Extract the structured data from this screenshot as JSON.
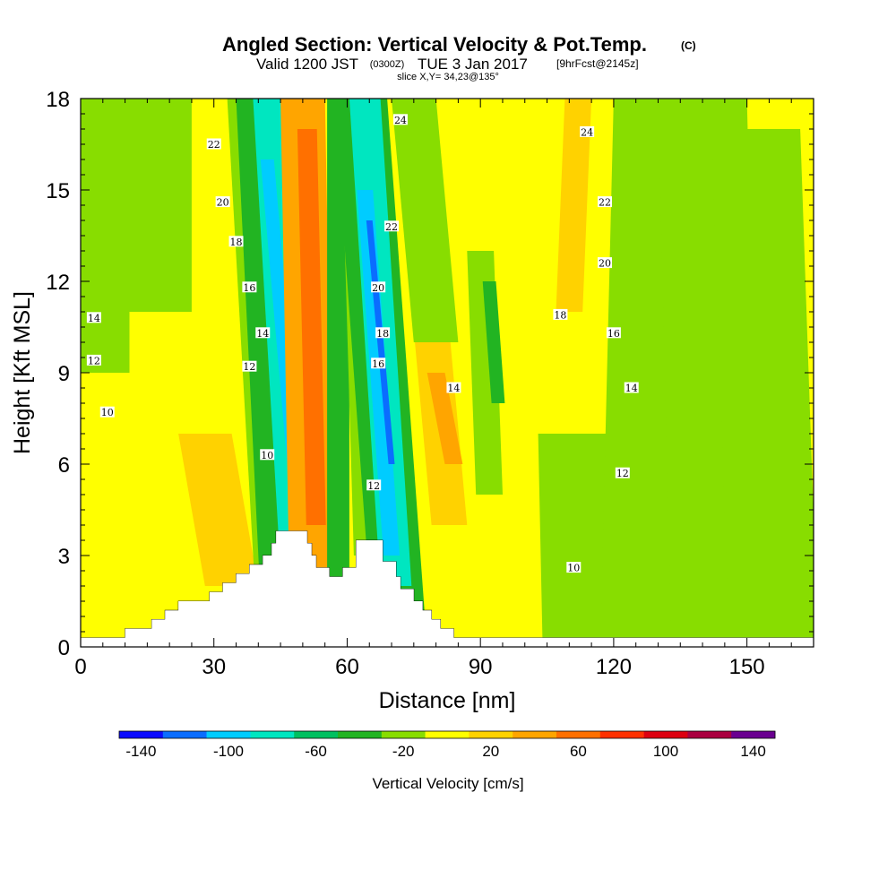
{
  "title": {
    "main": "Angled Section: Vertical Velocity & Pot.Temp.",
    "unit": "(C)",
    "valid_prefix": "Valid 1200 JST",
    "valid_utc": "(0300Z)",
    "valid_date": "TUE 3 Jan 2017",
    "forecast": "[9hrFcst@2145z]",
    "slice": "slice X,Y= 34,23@135°"
  },
  "chart_data": {
    "type": "heatmap",
    "xlabel": "Distance [nm]",
    "ylabel": "Height [Kft MSL]",
    "xlim": [
      0,
      165
    ],
    "ylim": [
      0,
      18
    ],
    "x_ticks": [
      "0",
      "30",
      "60",
      "90",
      "120",
      "150"
    ],
    "y_ticks": [
      "0",
      "3",
      "6",
      "9",
      "12",
      "15",
      "18"
    ],
    "colorbar": {
      "label": "Vertical Velocity [cm/s]",
      "tick_labels": [
        "-140",
        "-100",
        "-60",
        "-20",
        "20",
        "60",
        "100",
        "140"
      ],
      "colors": [
        "#0a0aff",
        "#0a6dff",
        "#00ccff",
        "#00e6c0",
        "#00c060",
        "#22b422",
        "#88dd00",
        "#ffff00",
        "#ffd200",
        "#ffa500",
        "#ff7000",
        "#ff3000",
        "#dd0010",
        "#aa0040",
        "#6a0090"
      ]
    },
    "terrain_kft": [
      [
        0,
        0.3
      ],
      [
        10,
        0.3
      ],
      [
        10,
        0.6
      ],
      [
        16,
        0.6
      ],
      [
        16,
        0.9
      ],
      [
        19,
        0.9
      ],
      [
        19,
        1.2
      ],
      [
        22,
        1.2
      ],
      [
        22,
        1.5
      ],
      [
        29,
        1.5
      ],
      [
        29,
        1.8
      ],
      [
        32,
        1.8
      ],
      [
        32,
        2.1
      ],
      [
        35,
        2.1
      ],
      [
        35,
        2.4
      ],
      [
        38,
        2.4
      ],
      [
        38,
        2.7
      ],
      [
        41,
        2.7
      ],
      [
        41,
        3.0
      ],
      [
        43,
        3.0
      ],
      [
        43,
        3.4
      ],
      [
        44,
        3.4
      ],
      [
        44,
        3.8
      ],
      [
        51,
        3.8
      ],
      [
        51,
        3.4
      ],
      [
        52,
        3.4
      ],
      [
        52,
        3.0
      ],
      [
        53,
        3.0
      ],
      [
        53,
        2.6
      ],
      [
        56,
        2.6
      ],
      [
        56,
        2.3
      ],
      [
        59,
        2.3
      ],
      [
        59,
        2.6
      ],
      [
        62,
        2.6
      ],
      [
        62,
        3.5
      ],
      [
        68,
        3.5
      ],
      [
        68,
        2.8
      ],
      [
        71,
        2.8
      ],
      [
        71,
        2.3
      ],
      [
        72,
        2.3
      ],
      [
        72,
        1.9
      ],
      [
        75,
        1.9
      ],
      [
        75,
        1.5
      ],
      [
        77,
        1.5
      ],
      [
        77,
        1.2
      ],
      [
        79,
        1.2
      ],
      [
        79,
        0.9
      ],
      [
        81,
        0.9
      ],
      [
        81,
        0.6
      ],
      [
        84,
        0.6
      ],
      [
        84,
        0.3
      ],
      [
        165,
        0.3
      ]
    ],
    "theta_contours": [
      {
        "level": "10",
        "labels": [
          [
            6,
            7.7
          ],
          [
            42,
            6.3
          ],
          [
            111,
            2.6
          ]
        ]
      },
      {
        "level": "12",
        "labels": [
          [
            3,
            9.4
          ],
          [
            38,
            9.2
          ],
          [
            66,
            5.3
          ],
          [
            122,
            5.7
          ]
        ]
      },
      {
        "level": "14",
        "labels": [
          [
            3,
            10.8
          ],
          [
            41,
            10.3
          ],
          [
            84,
            8.5
          ],
          [
            124,
            8.5
          ]
        ]
      },
      {
        "level": "16",
        "labels": [
          [
            38,
            11.8
          ],
          [
            67,
            9.3
          ],
          [
            120,
            10.3
          ]
        ]
      },
      {
        "level": "18",
        "labels": [
          [
            35,
            13.3
          ],
          [
            68,
            10.3
          ],
          [
            108,
            10.9
          ]
        ]
      },
      {
        "level": "20",
        "labels": [
          [
            32,
            14.6
          ],
          [
            67,
            11.8
          ],
          [
            118,
            12.6
          ]
        ]
      },
      {
        "level": "22",
        "labels": [
          [
            30,
            16.5
          ],
          [
            70,
            13.8
          ],
          [
            118,
            14.6
          ]
        ]
      },
      {
        "level": "24",
        "labels": [
          [
            72,
            17.3
          ],
          [
            114,
            16.9
          ]
        ]
      }
    ]
  }
}
